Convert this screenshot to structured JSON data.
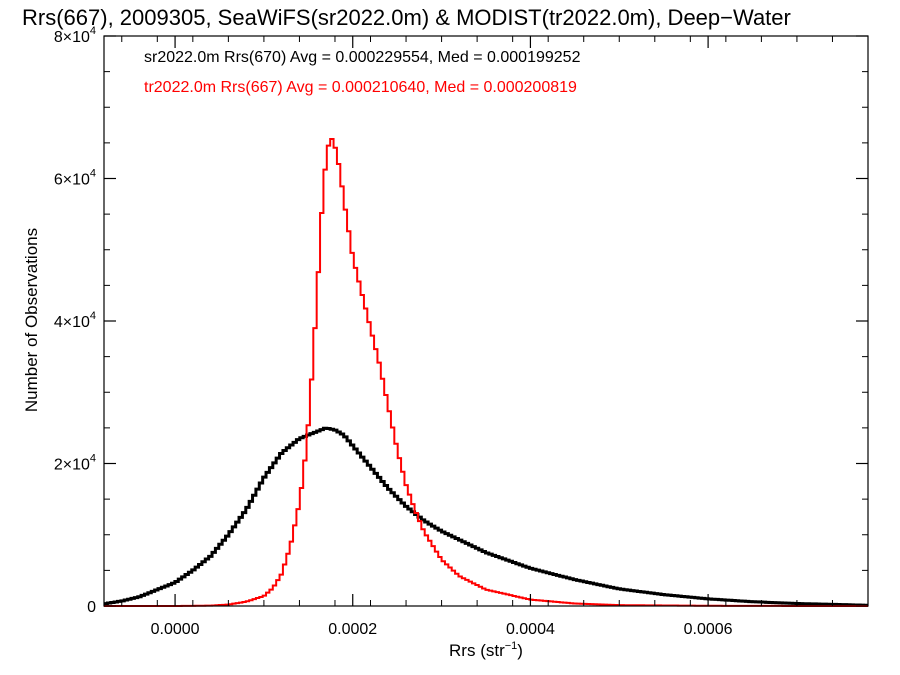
{
  "chart_data": {
    "type": "line",
    "title": "Rrs(667), 2009305, SeaWiFS(sr2022.0m) & MODIST(tr2022.0m), Deep−Water",
    "xlabel": "Rrs (str",
    "xlabel_sup": "−1",
    "xlabel_tail": ")",
    "ylabel": "Number of Observations",
    "xlim": [
      -8e-05,
      0.00078
    ],
    "ylim": [
      0,
      80000
    ],
    "grid": false,
    "x_ticks": [
      {
        "value": 0.0,
        "label": "0.0000"
      },
      {
        "value": 0.0002,
        "label": "0.0002"
      },
      {
        "value": 0.0004,
        "label": "0.0004"
      },
      {
        "value": 0.0006,
        "label": "0.0006"
      }
    ],
    "y_ticks": [
      {
        "value": 0,
        "mant": "0",
        "exp": ""
      },
      {
        "value": 20000,
        "mant": "2×10",
        "exp": "4"
      },
      {
        "value": 40000,
        "mant": "4×10",
        "exp": "4"
      },
      {
        "value": 60000,
        "mant": "6×10",
        "exp": "4"
      },
      {
        "value": 80000,
        "mant": "8×10",
        "exp": "4"
      }
    ],
    "annotations": [
      {
        "text": "sr2022.0m Rrs(670) Avg = 0.000229554, Med = 0.000199252",
        "color": "#000000"
      },
      {
        "text": "tr2022.0m Rrs(667) Avg = 0.000210640, Med = 0.000200819",
        "color": "#ff0000"
      }
    ],
    "series": [
      {
        "color": "#000000",
        "x": [
          -8e-05,
          -6e-05,
          -4e-05,
          -2e-05,
          0.0,
          2e-05,
          4e-05,
          6e-05,
          8e-05,
          0.0001,
          0.00012,
          0.00014,
          0.00016,
          0.00017,
          0.00018,
          0.00019,
          0.0002,
          0.00022,
          0.00024,
          0.00026,
          0.00028,
          0.0003,
          0.00032,
          0.00035,
          0.0004,
          0.00045,
          0.0005,
          0.00055,
          0.0006,
          0.00065,
          0.0007,
          0.00075,
          0.00078
        ],
        "y": [
          300,
          700,
          1300,
          2300,
          3300,
          5000,
          7000,
          10000,
          13500,
          18000,
          21500,
          23500,
          24500,
          25000,
          24700,
          24000,
          22500,
          19500,
          16500,
          14000,
          12000,
          10500,
          9300,
          7500,
          5300,
          3700,
          2400,
          1600,
          1000,
          600,
          350,
          200,
          100
        ]
      },
      {
        "color": "#ff0000",
        "x": [
          -8e-05,
          0.0,
          4e-05,
          6e-05,
          8e-05,
          0.0001,
          0.00011,
          0.00012,
          0.00013,
          0.00014,
          0.000145,
          0.00015,
          0.000155,
          0.00016,
          0.000165,
          0.00017,
          0.000175,
          0.00018,
          0.000185,
          0.00019,
          0.0002,
          0.00021,
          0.00022,
          0.00023,
          0.00024,
          0.00025,
          0.00026,
          0.00027,
          0.00028,
          0.0003,
          0.00032,
          0.00035,
          0.0004,
          0.00045,
          0.0005,
          0.0006,
          0.0007,
          0.00078
        ],
        "y": [
          0,
          0,
          50,
          200,
          600,
          1400,
          2500,
          4500,
          8500,
          14500,
          19000,
          25500,
          34000,
          44000,
          55000,
          63000,
          66000,
          64500,
          61500,
          57000,
          49000,
          44000,
          39000,
          34000,
          28000,
          22000,
          17000,
          13500,
          10500,
          6500,
          4200,
          2300,
          900,
          350,
          120,
          30,
          5,
          0
        ]
      }
    ]
  }
}
